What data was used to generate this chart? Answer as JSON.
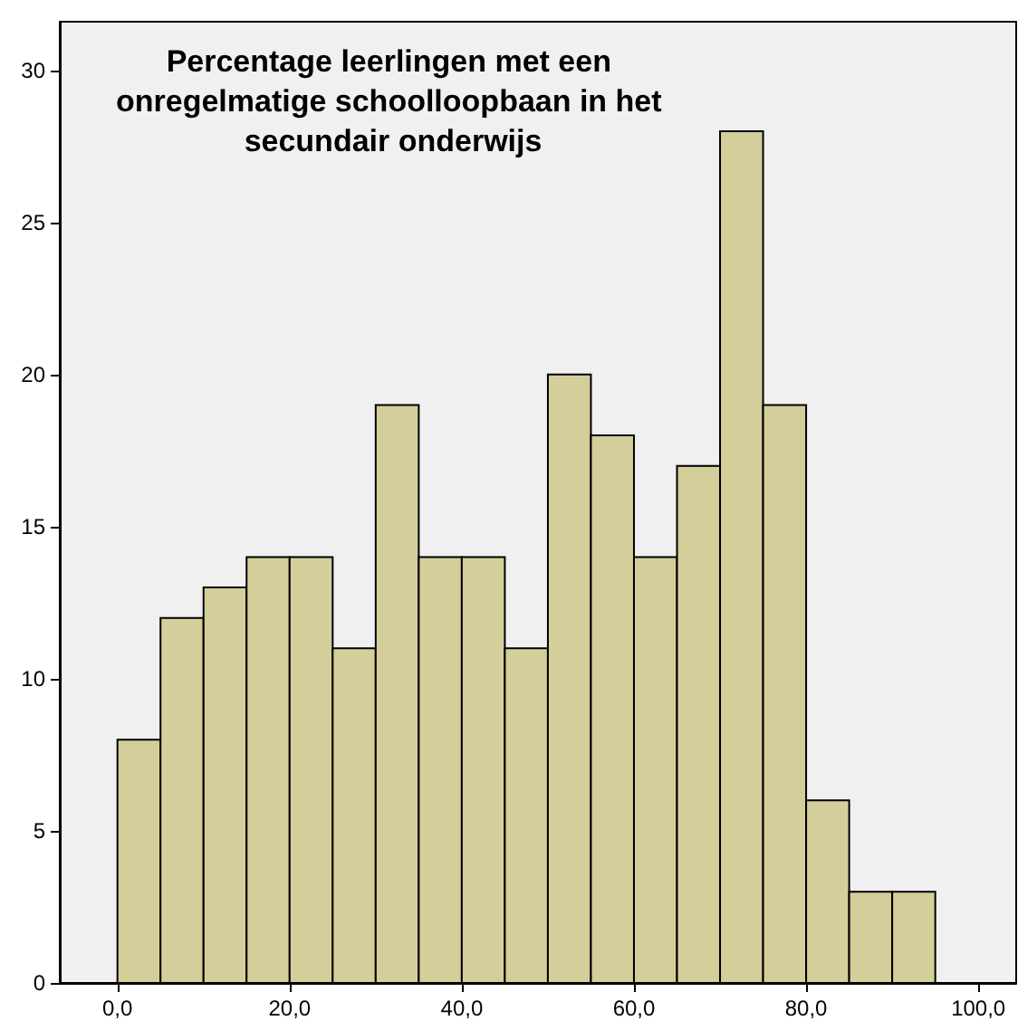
{
  "chart_data": {
    "type": "histogram",
    "title": "Percentage leerlingen met een onregelmatige schoolloopbaan in het secundair onderwijs",
    "bins": [
      0,
      5,
      10,
      15,
      20,
      25,
      30,
      35,
      40,
      45,
      50,
      55,
      60,
      65,
      70,
      75,
      80,
      85,
      90,
      95
    ],
    "values": [
      8,
      12,
      13,
      14,
      14,
      11,
      19,
      14,
      14,
      11,
      20,
      18,
      14,
      17,
      28,
      19,
      6,
      3,
      3
    ],
    "color": "#d3ce9a",
    "xlim": [
      -6.7,
      104.4
    ],
    "xticks": [
      {
        "value": 0,
        "label": "0,0"
      },
      {
        "value": 20,
        "label": "20,0"
      },
      {
        "value": 40,
        "label": "40,0"
      },
      {
        "value": 60,
        "label": "60,0"
      },
      {
        "value": 80,
        "label": "80,0"
      },
      {
        "value": 100,
        "label": "100,0"
      }
    ],
    "ylim": [
      0,
      31.6
    ],
    "yticks": [
      0,
      5,
      10,
      15,
      20,
      25,
      30
    ],
    "grid": false
  }
}
